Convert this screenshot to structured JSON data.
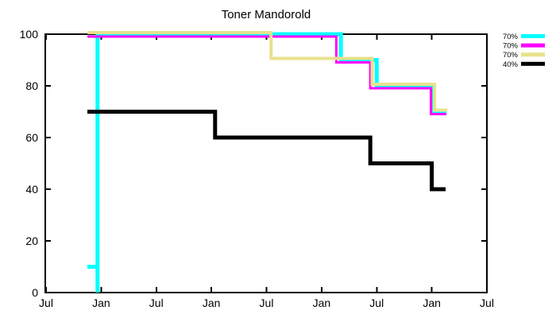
{
  "chart_data": {
    "type": "line",
    "subtype": "step",
    "title": "Toner Mandorold",
    "xlabel": "",
    "ylabel": "",
    "x_axis": {
      "tick_labels": [
        "Jul",
        "Jan",
        "Jul",
        "Jan",
        "Jul",
        "Jan",
        "Jul",
        "Jan",
        "Jul"
      ],
      "tick_positions_months": [
        0,
        6,
        12,
        18,
        24,
        30,
        36,
        42,
        48
      ],
      "range_months": [
        0,
        48
      ]
    },
    "y_axis": {
      "tick_labels": [
        "0",
        "20",
        "40",
        "60",
        "80",
        "100"
      ],
      "tick_values": [
        0,
        20,
        40,
        60,
        80,
        100
      ],
      "range": [
        0,
        100
      ]
    },
    "grid": false,
    "legend": {
      "position": "top-right-outside",
      "entries": [
        "70%",
        "70%",
        "70%",
        "40%"
      ]
    },
    "series": [
      {
        "name": "70%",
        "toner": "cyan",
        "color": "#00ffff",
        "points": [
          [
            4.5,
            10
          ],
          [
            5.6,
            10
          ],
          [
            5.6,
            0
          ],
          [
            5.6,
            100
          ],
          [
            32.1,
            100
          ],
          [
            32.1,
            90
          ],
          [
            36.0,
            90
          ],
          [
            36.0,
            80
          ],
          [
            42.0,
            80
          ],
          [
            42.0,
            70
          ],
          [
            43.6,
            70
          ]
        ]
      },
      {
        "name": "70%",
        "toner": "magenta",
        "color": "#ff00ff",
        "points": [
          [
            4.5,
            100
          ],
          [
            31.6,
            100
          ],
          [
            31.6,
            90
          ],
          [
            35.3,
            90
          ],
          [
            35.3,
            80
          ],
          [
            41.9,
            80
          ],
          [
            41.9,
            70
          ],
          [
            43.6,
            70
          ]
        ]
      },
      {
        "name": "70%",
        "toner": "yellow",
        "color": "#e8e18c",
        "points": [
          [
            4.5,
            100
          ],
          [
            24.5,
            100
          ],
          [
            24.5,
            90
          ],
          [
            35.5,
            90
          ],
          [
            35.5,
            80
          ],
          [
            42.3,
            80
          ],
          [
            42.3,
            70
          ],
          [
            43.7,
            70
          ]
        ]
      },
      {
        "name": "40%",
        "toner": "black",
        "color": "#000000",
        "points": [
          [
            4.5,
            70
          ],
          [
            18.4,
            70
          ],
          [
            18.4,
            60
          ],
          [
            35.3,
            60
          ],
          [
            35.3,
            50
          ],
          [
            42.0,
            50
          ],
          [
            42.0,
            40
          ],
          [
            43.5,
            40
          ]
        ]
      }
    ]
  }
}
